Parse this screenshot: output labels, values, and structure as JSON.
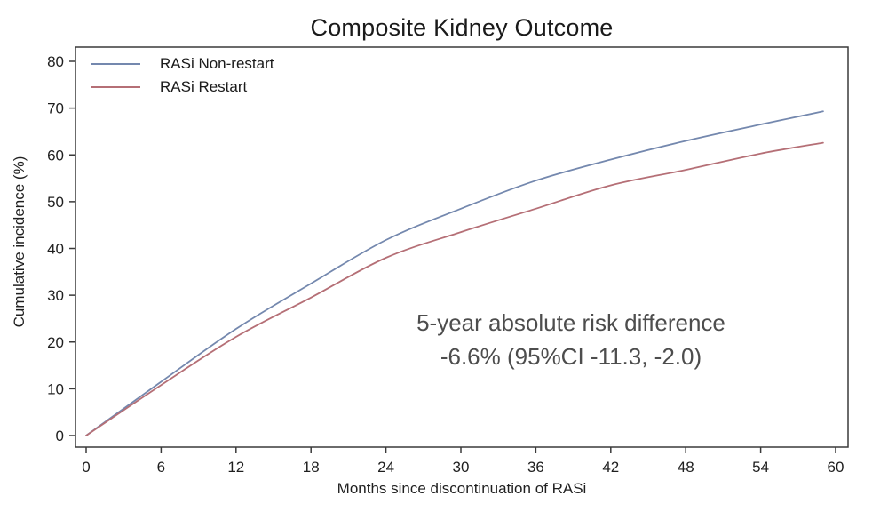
{
  "figure": {
    "title": "Composite Kidney Outcome",
    "xlabel": "Months since discontinuation of RASi",
    "ylabel": "Cumulative incidence (%)",
    "annotation_line1": "5-year absolute risk difference",
    "annotation_line2": "-6.6% (95%CI -11.3, -2.0)"
  },
  "colors": {
    "axis": "#3a3a3a",
    "tick_text": "#1f1f1f",
    "annotation_text": "#4d4d4d",
    "series_nonrestart": "#7488ae",
    "series_restart": "#b56f76"
  },
  "chart_data": {
    "type": "line",
    "title": "Composite Kidney Outcome",
    "xlabel": "Months since discontinuation of RASi",
    "ylabel": "Cumulative incidence (%)",
    "xlim": [
      0,
      60
    ],
    "ylim": [
      0,
      80
    ],
    "xticks": [
      0,
      6,
      12,
      18,
      24,
      30,
      36,
      42,
      48,
      54,
      60
    ],
    "yticks": [
      0,
      10,
      20,
      30,
      40,
      50,
      60,
      70,
      80
    ],
    "grid": false,
    "legend_position": "top-left",
    "x": [
      0,
      6,
      12,
      18,
      24,
      30,
      36,
      42,
      48,
      54,
      59
    ],
    "series": [
      {
        "name": "RASi Non-restart",
        "color": "#7488ae",
        "values": [
          0,
          11.5,
          22.8,
          32.5,
          41.8,
          48.5,
          54.5,
          59.0,
          63.0,
          66.5,
          69.3
        ]
      },
      {
        "name": "RASi Restart",
        "color": "#b56f76",
        "values": [
          0,
          10.8,
          21.1,
          29.5,
          38.0,
          43.5,
          48.5,
          53.5,
          56.8,
          60.3,
          62.6
        ]
      }
    ],
    "annotation": [
      "5-year absolute risk difference",
      "-6.6% (95%CI -11.3, -2.0)"
    ]
  }
}
